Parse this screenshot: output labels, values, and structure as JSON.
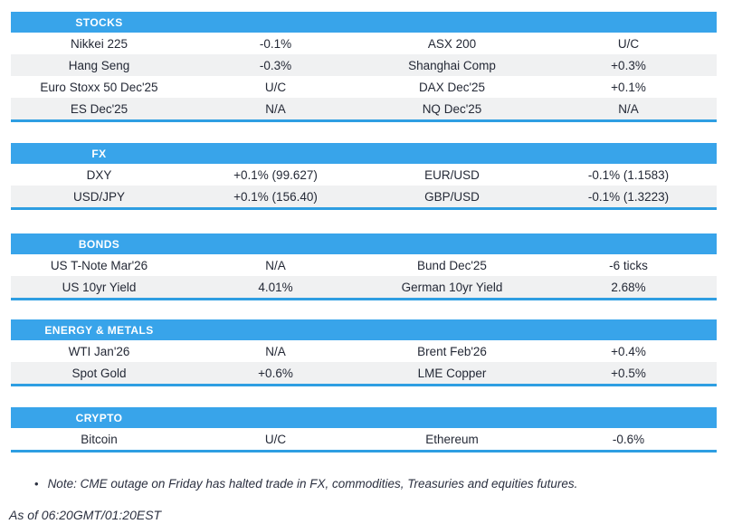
{
  "page": {
    "accent_color": "#38a4ea",
    "border_color": "#2e9ee2",
    "row_alt_color": "#f0f1f2",
    "text_color": "#242936"
  },
  "sections": [
    {
      "title": "STOCKS",
      "rows": [
        {
          "cells": [
            "Nikkei 225",
            "-0.1%",
            "ASX 200",
            "U/C"
          ]
        },
        {
          "cells": [
            "Hang Seng",
            "-0.3%",
            "Shanghai Comp",
            "+0.3%"
          ]
        },
        {
          "cells": [
            "Euro Stoxx 50 Dec'25",
            "U/C",
            "DAX Dec'25",
            "+0.1%"
          ]
        },
        {
          "cells": [
            "ES Dec'25",
            "N/A",
            "NQ Dec'25",
            "N/A"
          ]
        }
      ]
    },
    {
      "title": "FX",
      "rows": [
        {
          "cells": [
            "DXY",
            "+0.1% (99.627)",
            "EUR/USD",
            "-0.1% (1.1583)"
          ]
        },
        {
          "cells": [
            "USD/JPY",
            "+0.1% (156.40)",
            "GBP/USD",
            "-0.1% (1.3223)"
          ]
        }
      ]
    },
    {
      "title": "BONDS",
      "rows": [
        {
          "cells": [
            "US T-Note Mar'26",
            "N/A",
            "Bund Dec'25",
            "-6 ticks"
          ]
        },
        {
          "cells": [
            "US 10yr Yield",
            "4.01%",
            "German 10yr Yield",
            "2.68%"
          ]
        }
      ]
    },
    {
      "title": "ENERGY & METALS",
      "rows": [
        {
          "cells": [
            "WTI Jan'26",
            "N/A",
            "Brent Feb'26",
            "+0.4%"
          ]
        },
        {
          "cells": [
            "Spot Gold",
            "+0.6%",
            "LME Copper",
            "+0.5%"
          ]
        }
      ]
    },
    {
      "title": "CRYPTO",
      "rows": [
        {
          "cells": [
            "Bitcoin",
            "U/C",
            "Ethereum",
            "-0.6%"
          ]
        }
      ]
    }
  ],
  "footer": {
    "bullet": "•",
    "note": "Note: CME outage on Friday has halted trade in FX, commodities, Treasuries and equities futures.",
    "as_of": "As of 06:20GMT/01:20EST"
  }
}
